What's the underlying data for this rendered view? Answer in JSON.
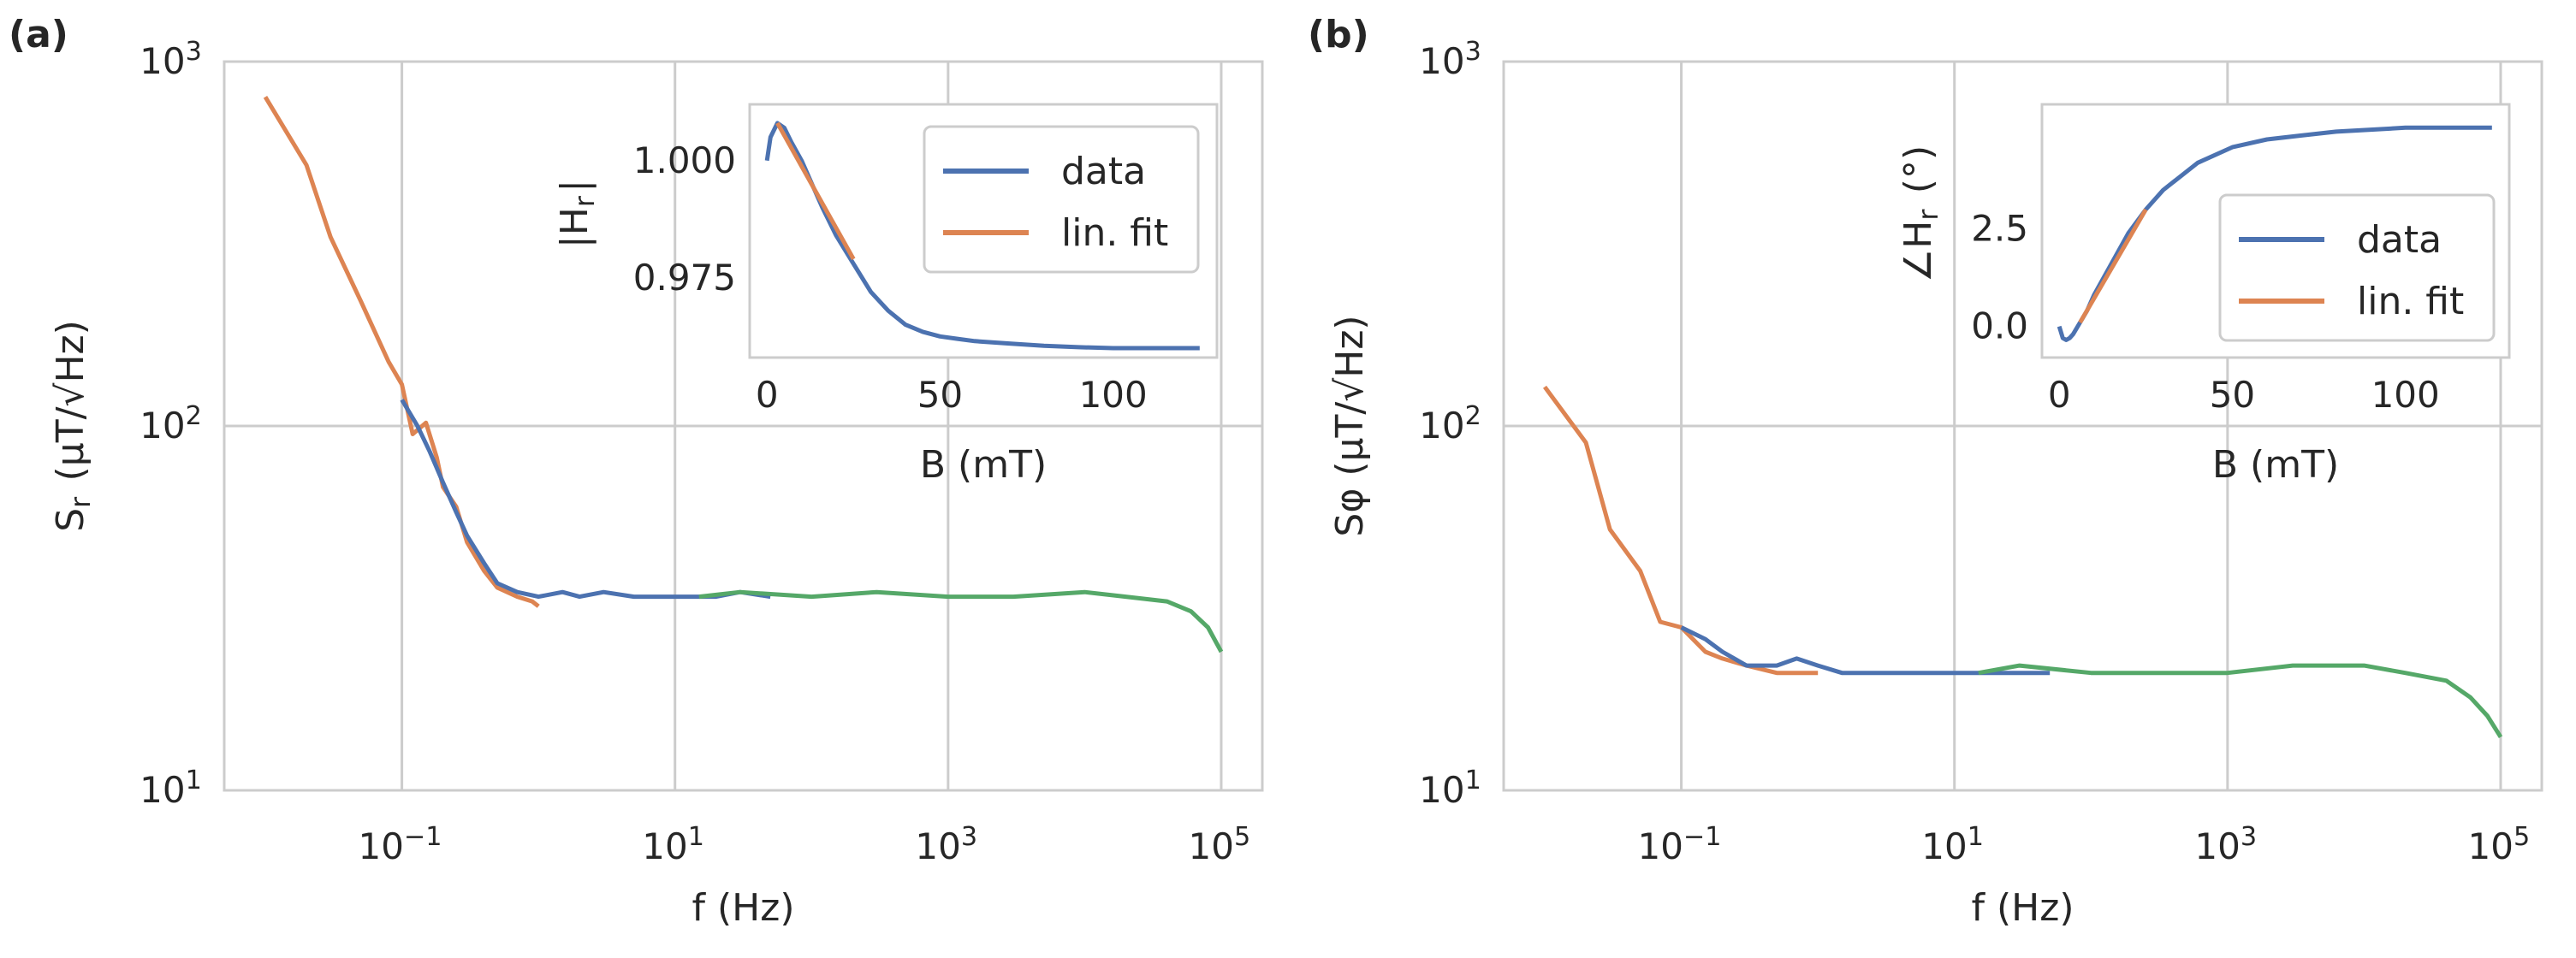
{
  "colors": {
    "blue": "#4c72b0",
    "orange": "#dd8452",
    "green": "#55a868",
    "grid": "#cccccc",
    "frame": "#cccccc"
  },
  "panels": [
    {
      "label": "(a)",
      "ylabel": "S_r (μT/√Hz)",
      "xlabel": "f (Hz)",
      "x_ticks": [
        "10^-1",
        "10^1",
        "10^3",
        "10^5"
      ],
      "y_ticks": [
        "10^1",
        "10^2",
        "10^3"
      ],
      "inset": {
        "ylabel": "|H_r|",
        "xlabel": "B (mT)",
        "x_ticks": [
          "0",
          "50",
          "100"
        ],
        "y_ticks": [
          "1.000",
          "0.975"
        ],
        "legend": [
          "data",
          "lin. fit"
        ]
      }
    },
    {
      "label": "(b)",
      "ylabel": "S_φ (μT/√Hz)",
      "xlabel": "f (Hz)",
      "x_ticks": [
        "10^-1",
        "10^1",
        "10^3",
        "10^5"
      ],
      "y_ticks": [
        "10^1",
        "10^2",
        "10^3"
      ],
      "inset": {
        "ylabel": "∠H_r (°)",
        "xlabel": "B (mT)",
        "x_ticks": [
          "0",
          "50",
          "100"
        ],
        "y_ticks": [
          "0.0",
          "2.5"
        ],
        "legend": [
          "data",
          "lin. fit"
        ]
      }
    }
  ],
  "chart_data": [
    {
      "type": "line",
      "panel": "(a)",
      "xscale": "log",
      "yscale": "log",
      "xlim": [
        0.005,
        200000
      ],
      "ylim": [
        10,
        1000
      ],
      "series": [
        {
          "color": "orange",
          "x": [
            0.01,
            0.02,
            0.03,
            0.05,
            0.08,
            0.1,
            0.12,
            0.15,
            0.18,
            0.2,
            0.25,
            0.3,
            0.4,
            0.5,
            0.7,
            0.9,
            1.0
          ],
          "y": [
            800,
            520,
            330,
            220,
            150,
            130,
            95,
            102,
            82,
            68,
            60,
            48,
            40,
            36,
            34,
            33,
            32
          ]
        },
        {
          "color": "blue",
          "x": [
            0.1,
            0.13,
            0.16,
            0.2,
            0.25,
            0.3,
            0.4,
            0.5,
            0.7,
            1.0,
            1.5,
            2,
            3,
            5,
            7,
            10,
            15,
            20,
            30,
            50
          ],
          "y": [
            118,
            100,
            85,
            70,
            58,
            50,
            42,
            37,
            35,
            34,
            35,
            34,
            35,
            34,
            34,
            34,
            34,
            34,
            35,
            34
          ]
        },
        {
          "color": "green",
          "x": [
            15,
            30,
            100,
            300,
            1000,
            3000,
            10000,
            20000,
            40000,
            60000,
            80000,
            100000
          ],
          "y": [
            34,
            35,
            34,
            35,
            34,
            34,
            35,
            34,
            33,
            31,
            28,
            24
          ]
        }
      ],
      "inset": {
        "type": "line",
        "xlim": [
          -5,
          130
        ],
        "ylim": [
          0.958,
          1.012
        ],
        "series": [
          {
            "name": "data",
            "color": "blue",
            "x": [
              0,
              1,
              3,
              5,
              7,
              10,
              13,
              16,
              20,
              25,
              30,
              35,
              40,
              45,
              50,
              55,
              60,
              70,
              80,
              90,
              100,
              110,
              120,
              125
            ],
            "y": [
              1.0,
              1.005,
              1.008,
              1.007,
              1.004,
              1.0,
              0.995,
              0.99,
              0.984,
              0.978,
              0.972,
              0.968,
              0.965,
              0.9635,
              0.9625,
              0.962,
              0.9615,
              0.961,
              0.9605,
              0.9602,
              0.96,
              0.96,
              0.96,
              0.96
            ]
          },
          {
            "name": "lin. fit",
            "color": "orange",
            "x": [
              3,
              25
            ],
            "y": [
              1.008,
              0.979
            ]
          }
        ]
      }
    },
    {
      "type": "line",
      "panel": "(b)",
      "xscale": "log",
      "yscale": "log",
      "xlim": [
        0.005,
        200000
      ],
      "ylim": [
        10,
        1000
      ],
      "series": [
        {
          "color": "orange",
          "x": [
            0.01,
            0.02,
            0.03,
            0.05,
            0.07,
            0.1,
            0.15,
            0.2,
            0.3,
            0.5,
            0.7,
            1.0
          ],
          "y": [
            128,
            90,
            52,
            40,
            29,
            28,
            24,
            23,
            22,
            21,
            21,
            21
          ]
        },
        {
          "color": "blue",
          "x": [
            0.1,
            0.15,
            0.2,
            0.3,
            0.5,
            0.7,
            1.0,
            1.5,
            2,
            3,
            5,
            10,
            20,
            50
          ],
          "y": [
            28,
            26,
            24,
            22,
            22,
            23,
            22,
            21,
            21,
            21,
            21,
            21,
            21,
            21
          ]
        },
        {
          "color": "green",
          "x": [
            15,
            30,
            100,
            300,
            1000,
            3000,
            10000,
            20000,
            40000,
            60000,
            80000,
            100000
          ],
          "y": [
            21,
            22,
            21,
            21,
            21,
            22,
            22,
            21,
            20,
            18,
            16,
            14
          ]
        }
      ],
      "inset": {
        "type": "line",
        "xlim": [
          -5,
          130
        ],
        "ylim": [
          -0.8,
          5.7
        ],
        "series": [
          {
            "name": "data",
            "color": "blue",
            "x": [
              0,
              1,
              2,
              3,
              4,
              6,
              8,
              10,
              15,
              20,
              25,
              30,
              40,
              50,
              60,
              70,
              80,
              90,
              100,
              110,
              120,
              125
            ],
            "y": [
              0.0,
              -0.3,
              -0.35,
              -0.3,
              -0.2,
              0.1,
              0.4,
              0.8,
              1.6,
              2.4,
              3.0,
              3.5,
              4.2,
              4.6,
              4.8,
              4.9,
              5.0,
              5.05,
              5.1,
              5.1,
              5.1,
              5.1
            ]
          },
          {
            "name": "lin. fit",
            "color": "orange",
            "x": [
              6,
              25
            ],
            "y": [
              0.1,
              3.0
            ]
          }
        ]
      }
    }
  ]
}
